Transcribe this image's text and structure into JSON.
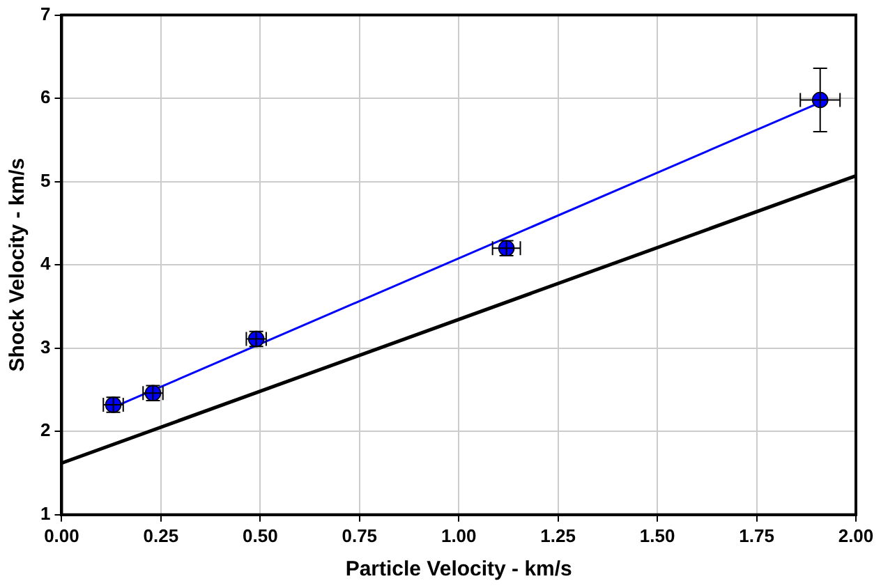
{
  "chart_data": {
    "type": "scatter",
    "xlabel": "Particle Velocity - km/s",
    "ylabel": "Shock Velocity - km/s",
    "xlim": [
      0,
      2
    ],
    "xticks": [
      {
        "value": 0,
        "label": "0.00"
      },
      {
        "value": 0.25,
        "label": "0.25"
      },
      {
        "value": 0.5,
        "label": "0.50"
      },
      {
        "value": 0.75,
        "label": "0.75"
      },
      {
        "value": 1,
        "label": "1.00"
      },
      {
        "value": 1.25,
        "label": "1.25"
      },
      {
        "value": 1.5,
        "label": "1.50"
      },
      {
        "value": 1.75,
        "label": "1.75"
      },
      {
        "value": 2,
        "label": "2.00"
      }
    ],
    "ylim": [
      1,
      7
    ],
    "yticks": [
      1,
      2,
      3,
      4,
      5,
      6,
      7
    ],
    "grid": true,
    "legend": false,
    "marker": "circle",
    "series": [
      {
        "color": "#0000ff",
        "x": [
          0.13,
          0.23,
          0.49,
          1.12,
          1.91
        ],
        "values": [
          2.32,
          2.46,
          3.11,
          4.2,
          5.98
        ],
        "errors": [
          0.09,
          0.09,
          0.09,
          0.09,
          0.38
        ],
        "xerrors": [
          0.025,
          0.025,
          0.025,
          0.035,
          0.05
        ]
      },
      {
        "type": "line",
        "marker": "none",
        "color": "#0000ff",
        "x": [
          0.13,
          1.91
        ],
        "values": [
          2.29,
          5.95
        ]
      },
      {
        "type": "line",
        "marker": "none",
        "color": "#000000",
        "x": [
          0,
          2
        ],
        "values": [
          1.62,
          5.07
        ]
      }
    ]
  }
}
